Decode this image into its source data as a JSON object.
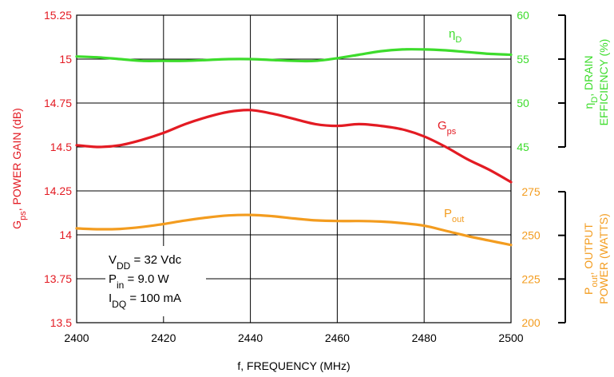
{
  "chart_data": {
    "type": "line",
    "xlabel": "f, FREQUENCY (MHz)",
    "x_ticks": [
      2400,
      2420,
      2440,
      2460,
      2480,
      2500
    ],
    "xlim": [
      2400,
      2500
    ],
    "grid": true,
    "left_axis": {
      "label_main": "G",
      "label_sub": "ps",
      "label_rest": ", POWER GAIN (dB)",
      "ylim": [
        13.5,
        15.25
      ],
      "ticks": [
        "13.5",
        "13.75",
        "14",
        "14.25",
        "14.5",
        "14.75",
        "15",
        "15.25"
      ],
      "color": "#e31b23"
    },
    "right_axis_efficiency": {
      "label_line1_main": "η",
      "label_line1_sub": "D",
      "label_line1_rest": ", DRAIN",
      "label_line2": "EFFICIENCY (%)",
      "ylim": [
        45,
        60
      ],
      "ticks": [
        "45",
        "50",
        "55",
        "60"
      ],
      "color": "#3ddc2c"
    },
    "right_axis_power": {
      "label_line1_main": "P",
      "label_line1_sub": "out",
      "label_line1_rest": ", OUTPUT",
      "label_line2": "POWER (WATTS)",
      "ylim": [
        200,
        275
      ],
      "ticks": [
        "200",
        "225",
        "250",
        "275"
      ],
      "color": "#f39c1f"
    },
    "series": [
      {
        "name_main": "η",
        "name_sub": "D",
        "axis": "efficiency",
        "color": "#3ddc2c",
        "x": [
          2400,
          2405,
          2410,
          2415,
          2420,
          2425,
          2430,
          2435,
          2440,
          2445,
          2450,
          2455,
          2460,
          2465,
          2470,
          2475,
          2480,
          2485,
          2490,
          2495,
          2500
        ],
        "y": [
          55.3,
          55.2,
          55.0,
          54.8,
          54.8,
          54.8,
          54.9,
          55.0,
          55.0,
          54.9,
          54.8,
          54.8,
          55.1,
          55.5,
          55.9,
          56.1,
          56.1,
          56.0,
          55.8,
          55.6,
          55.5
        ]
      },
      {
        "name_main": "G",
        "name_sub": "ps",
        "axis": "gain",
        "color": "#e31b23",
        "x": [
          2400,
          2405,
          2410,
          2415,
          2420,
          2425,
          2430,
          2435,
          2440,
          2445,
          2450,
          2455,
          2460,
          2465,
          2470,
          2475,
          2480,
          2485,
          2490,
          2495,
          2500
        ],
        "y": [
          14.51,
          14.5,
          14.51,
          14.54,
          14.58,
          14.63,
          14.67,
          14.7,
          14.71,
          14.69,
          14.66,
          14.63,
          14.62,
          14.63,
          14.62,
          14.6,
          14.56,
          14.5,
          14.43,
          14.37,
          14.3
        ]
      },
      {
        "name_main": "P",
        "name_sub": "out",
        "axis": "power",
        "color": "#f39c1f",
        "x": [
          2400,
          2405,
          2410,
          2415,
          2420,
          2425,
          2430,
          2435,
          2440,
          2445,
          2450,
          2455,
          2460,
          2465,
          2470,
          2475,
          2480,
          2485,
          2490,
          2495,
          2500
        ],
        "y": [
          254.0,
          253.5,
          253.7,
          254.8,
          256.5,
          258.5,
          260.2,
          261.4,
          261.7,
          261.0,
          259.7,
          258.6,
          258.2,
          258.2,
          257.9,
          257.0,
          255.5,
          252.6,
          249.6,
          247.0,
          244.5
        ]
      }
    ],
    "annotations": [
      {
        "main": "V",
        "sub": "DD",
        "rest": " = 32 Vdc"
      },
      {
        "main": "P",
        "sub": "in",
        "rest": " = 9.0 W"
      },
      {
        "main": "I",
        "sub": "DQ",
        "rest": " = 100 mA"
      }
    ]
  }
}
